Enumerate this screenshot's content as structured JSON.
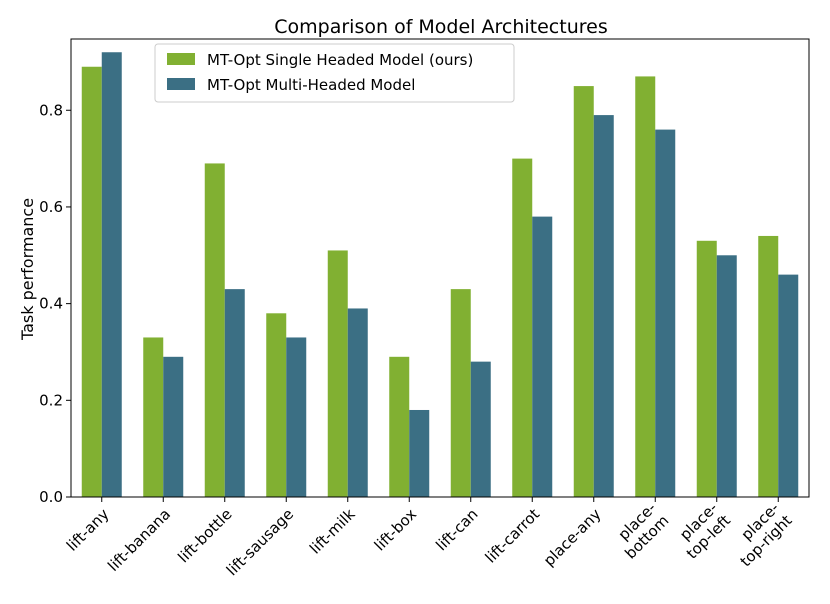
{
  "chart_data": {
    "type": "bar",
    "title": "Comparison of Model Architectures",
    "xlabel": "",
    "ylabel": "Task performance",
    "ylim": [
      0,
      0.9474
    ],
    "yticks": [
      0.0,
      0.2,
      0.4,
      0.6,
      0.8
    ],
    "ytick_labels": [
      "0.0",
      "0.2",
      "0.4",
      "0.6",
      "0.8"
    ],
    "grid": false,
    "legend_position": "top-left",
    "categories": [
      [
        "lift-any"
      ],
      [
        "lift-banana"
      ],
      [
        "lift-bottle"
      ],
      [
        "lift-sausage"
      ],
      [
        "lift-milk"
      ],
      [
        "lift-box"
      ],
      [
        "lift-can"
      ],
      [
        "lift-carrot"
      ],
      [
        "place-any"
      ],
      [
        "place-",
        "bottom"
      ],
      [
        "place-",
        "top-left"
      ],
      [
        "place-",
        "top-right"
      ]
    ],
    "series": [
      {
        "name": "MT-Opt Single Headed Model (ours)",
        "color": "#81b032",
        "values": [
          0.89,
          0.33,
          0.69,
          0.38,
          0.51,
          0.29,
          0.43,
          0.7,
          0.85,
          0.87,
          0.53,
          0.54
        ]
      },
      {
        "name": "MT-Opt Multi-Headed Model",
        "color": "#3b6f84",
        "values": [
          0.92,
          0.29,
          0.43,
          0.33,
          0.39,
          0.18,
          0.28,
          0.58,
          0.79,
          0.76,
          0.5,
          0.46
        ]
      }
    ]
  }
}
